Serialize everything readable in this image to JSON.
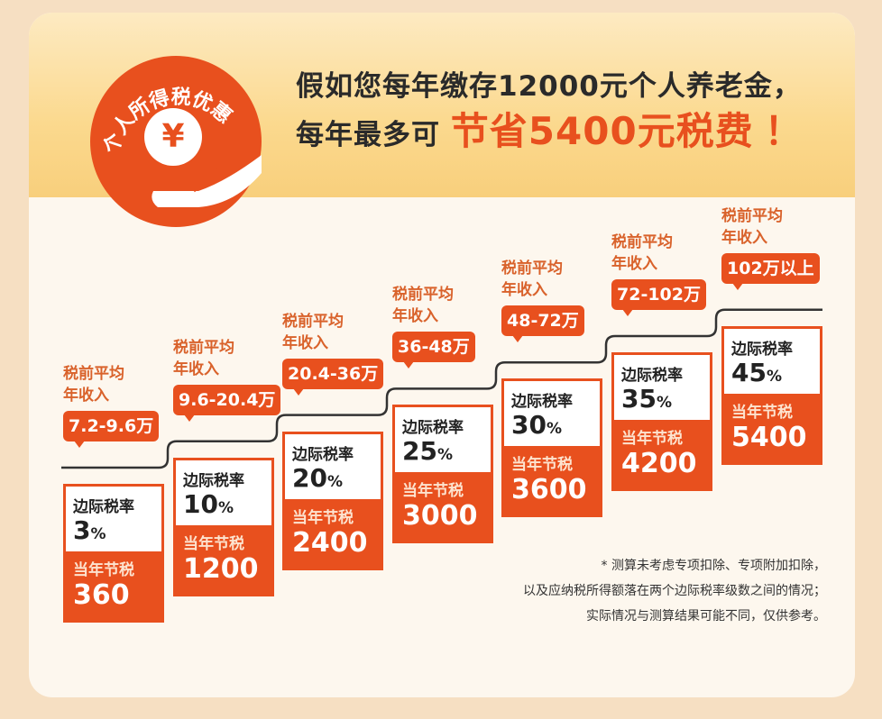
{
  "badge": {
    "arc_text": "个人所得税优惠",
    "coin_symbol": "¥"
  },
  "headline": {
    "line1": "假如您每年缴存12000元个人养老金，",
    "line2_prefix": "每年最多可",
    "line2_highlight": "节省5400元税费",
    "line2_suffix": "！"
  },
  "colors": {
    "accent": "#e8501e",
    "label": "#d9622b",
    "band": "#fbd98e"
  },
  "tiers": [
    {
      "income_label": "税前平均\n年收入",
      "income": "7.2-9.6万",
      "rate_label": "边际税率",
      "rate": "3",
      "saving_label": "当年节税",
      "saving": "360"
    },
    {
      "income_label": "税前平均\n年收入",
      "income": "9.6-20.4万",
      "rate_label": "边际税率",
      "rate": "10",
      "saving_label": "当年节税",
      "saving": "1200"
    },
    {
      "income_label": "税前平均\n年收入",
      "income": "20.4-36万",
      "rate_label": "边际税率",
      "rate": "20",
      "saving_label": "当年节税",
      "saving": "2400"
    },
    {
      "income_label": "税前平均\n年收入",
      "income": "36-48万",
      "rate_label": "边际税率",
      "rate": "25",
      "saving_label": "当年节税",
      "saving": "3000"
    },
    {
      "income_label": "税前平均\n年收入",
      "income": "48-72万",
      "rate_label": "边际税率",
      "rate": "30",
      "saving_label": "当年节税",
      "saving": "3600"
    },
    {
      "income_label": "税前平均\n年收入",
      "income": "72-102万",
      "rate_label": "边际税率",
      "rate": "35",
      "saving_label": "当年节税",
      "saving": "4200"
    },
    {
      "income_label": "税前平均\n年收入",
      "income": "102万以上",
      "rate_label": "边际税率",
      "rate": "45",
      "saving_label": "当年节税",
      "saving": "5400"
    }
  ],
  "percent_sign": "%",
  "footnote": [
    "* 测算未考虑专项扣除、专项附加扣除，",
    "以及应纳税所得额落在两个边际税率级数之间的情况；",
    "实际情况与测算结果可能不同，仅供参考。"
  ]
}
